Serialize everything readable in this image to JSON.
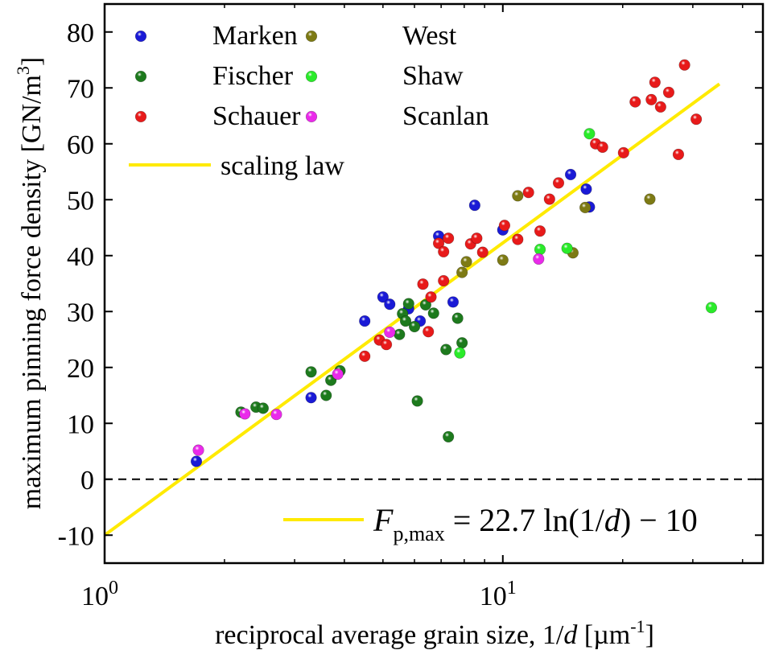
{
  "chart_data": {
    "type": "scatter",
    "xlabel": "reciprocal average grain size, 1/d [µm⁻¹]",
    "xlabel_parts": {
      "before": "reciprocal average grain size, 1/",
      "var": "d",
      "mid": " [µm",
      "sup": "-1",
      "after": "]"
    },
    "ylabel": "maximum pinning force density [GN/m³]",
    "ylabel_parts": {
      "main": "maximum pinning force density [GN/m",
      "sup": "3",
      "after": "]"
    },
    "x_scale": "log",
    "xlim": [
      1,
      45
    ],
    "ylim": [
      -15,
      85
    ],
    "x_ticks": [
      {
        "value": 1,
        "base": "10",
        "exp": "0"
      },
      {
        "value": 10,
        "base": "10",
        "exp": "1"
      }
    ],
    "y_ticks": [
      -10,
      0,
      10,
      20,
      30,
      40,
      50,
      60,
      70,
      80
    ],
    "y_tick_labels": [
      "-10",
      "0",
      "10",
      "20",
      "30",
      "40",
      "50",
      "60",
      "70",
      "80"
    ],
    "zero_line": {
      "y": 0,
      "style": "dashed"
    },
    "series": [
      {
        "name": "Marken",
        "color": "#1a1ad6",
        "points": [
          [
            1.7,
            3.2
          ],
          [
            3.3,
            14.6
          ],
          [
            4.5,
            28.3
          ],
          [
            5.0,
            32.6
          ],
          [
            5.2,
            31.3
          ],
          [
            5.8,
            30.5
          ],
          [
            6.2,
            28.3
          ],
          [
            6.9,
            43.5
          ],
          [
            7.5,
            31.7
          ],
          [
            8.5,
            49.0
          ],
          [
            10.0,
            44.6
          ],
          [
            14.8,
            54.5
          ],
          [
            16.2,
            51.9
          ],
          [
            16.5,
            48.7
          ]
        ]
      },
      {
        "name": "Fischer",
        "color": "#1d7a1d",
        "points": [
          [
            2.2,
            12.0
          ],
          [
            2.4,
            12.9
          ],
          [
            2.5,
            12.7
          ],
          [
            3.3,
            19.2
          ],
          [
            3.6,
            15.0
          ],
          [
            3.7,
            17.7
          ],
          [
            3.9,
            19.4
          ],
          [
            5.5,
            25.9
          ],
          [
            5.6,
            29.6
          ],
          [
            5.7,
            28.3
          ],
          [
            5.8,
            31.4
          ],
          [
            6.0,
            27.3
          ],
          [
            6.1,
            14.0
          ],
          [
            6.4,
            31.2
          ],
          [
            6.7,
            29.7
          ],
          [
            7.2,
            23.2
          ],
          [
            7.3,
            7.6
          ],
          [
            7.7,
            28.8
          ],
          [
            7.9,
            24.4
          ]
        ]
      },
      {
        "name": "Schauer",
        "color": "#e81a1a",
        "points": [
          [
            4.5,
            22.0
          ],
          [
            4.9,
            24.9
          ],
          [
            5.1,
            24.1
          ],
          [
            6.3,
            34.9
          ],
          [
            6.5,
            26.4
          ],
          [
            6.6,
            32.6
          ],
          [
            6.9,
            42.2
          ],
          [
            7.1,
            40.7
          ],
          [
            7.1,
            35.5
          ],
          [
            7.3,
            43.1
          ],
          [
            8.3,
            42.1
          ],
          [
            8.6,
            43.1
          ],
          [
            8.9,
            40.6
          ],
          [
            10.1,
            45.4
          ],
          [
            10.9,
            42.9
          ],
          [
            11.6,
            51.3
          ],
          [
            12.4,
            44.4
          ],
          [
            13.1,
            50.1
          ],
          [
            13.8,
            53.0
          ],
          [
            17.1,
            60.0
          ],
          [
            17.8,
            59.4
          ],
          [
            20.1,
            58.4
          ],
          [
            21.5,
            67.5
          ],
          [
            23.6,
            67.9
          ],
          [
            24.1,
            71.0
          ],
          [
            24.9,
            66.6
          ],
          [
            26.1,
            69.2
          ],
          [
            27.6,
            58.1
          ],
          [
            28.6,
            74.1
          ],
          [
            30.6,
            64.4
          ]
        ]
      },
      {
        "name": "West",
        "color": "#7d7a14",
        "points": [
          [
            7.9,
            37.0
          ],
          [
            8.1,
            38.9
          ],
          [
            10.0,
            39.2
          ],
          [
            10.9,
            50.7
          ],
          [
            15.0,
            40.5
          ],
          [
            16.1,
            48.6
          ],
          [
            23.4,
            50.1
          ]
        ]
      },
      {
        "name": "Shaw",
        "color": "#2aeb2a",
        "points": [
          [
            7.8,
            22.6
          ],
          [
            12.4,
            41.1
          ],
          [
            14.5,
            41.3
          ],
          [
            16.5,
            61.8
          ],
          [
            33.4,
            30.7
          ]
        ]
      },
      {
        "name": "Scanlan",
        "color": "#ea2aea",
        "points": [
          [
            1.72,
            5.2
          ],
          [
            2.25,
            11.7
          ],
          [
            2.7,
            11.6
          ],
          [
            3.85,
            18.8
          ],
          [
            5.2,
            26.3
          ],
          [
            12.3,
            39.4
          ]
        ]
      }
    ],
    "fit_line": {
      "name": "scaling law",
      "color": "#ffea00",
      "slope": 22.7,
      "intercept": -10,
      "x_range": [
        1,
        35
      ]
    },
    "annotation": {
      "F": "F",
      "sub": "p,max",
      "rest_a": " = 22.7 ln(1/",
      "d": "d",
      "rest_b": ") − 10"
    },
    "legend": {
      "placement": "top-left",
      "columns": [
        [
          "Marken",
          "Fischer",
          "Schauer"
        ],
        [
          "West",
          "Shaw",
          "Scanlan"
        ]
      ],
      "line_entry": "scaling law"
    }
  }
}
